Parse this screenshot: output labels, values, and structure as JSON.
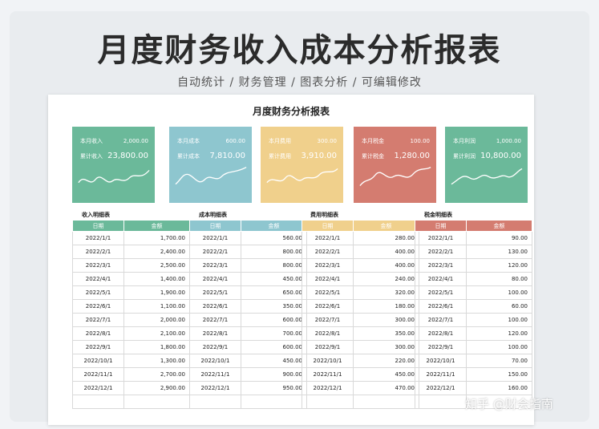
{
  "header": {
    "title": "月度财务收入成本分析报表",
    "subtitle": "自动统计 / 财务管理 / 图表分析 / 可编辑修改"
  },
  "sheet": {
    "title": "月度财务分析报表"
  },
  "cards": [
    {
      "label1": "本月收入",
      "value1": "2,000.00",
      "label2": "累计收入",
      "value2": "23,800.00",
      "color": "#6bb99a"
    },
    {
      "label1": "本月成本",
      "value1": "600.00",
      "label2": "累计成本",
      "value2": "7,810.00",
      "color": "#8ec6cf"
    },
    {
      "label1": "本月费用",
      "value1": "300.00",
      "label2": "累计费用",
      "value2": "3,910.00",
      "color": "#f0d08c"
    },
    {
      "label1": "本月税金",
      "value1": "100.00",
      "label2": "累计税金",
      "value2": "1,280.00",
      "color": "#d47c70"
    },
    {
      "label1": "本月利润",
      "value1": "1,000.00",
      "label2": "累计利润",
      "value2": "10,800.00",
      "color": "#6bb99a"
    }
  ],
  "tables": [
    {
      "title": "收入明细表",
      "col_date": "日期",
      "col_amount": "金额",
      "color": "#6bb99a",
      "rows": [
        [
          "2022/1/1",
          "1,700.00"
        ],
        [
          "2022/2/1",
          "2,400.00"
        ],
        [
          "2022/3/1",
          "2,500.00"
        ],
        [
          "2022/4/1",
          "1,400.00"
        ],
        [
          "2022/5/1",
          "1,900.00"
        ],
        [
          "2022/6/1",
          "1,100.00"
        ],
        [
          "2022/7/1",
          "2,000.00"
        ],
        [
          "2022/8/1",
          "2,100.00"
        ],
        [
          "2022/9/1",
          "1,800.00"
        ],
        [
          "2022/10/1",
          "1,300.00"
        ],
        [
          "2022/11/1",
          "2,700.00"
        ],
        [
          "2022/12/1",
          "2,900.00"
        ],
        [
          "",
          ""
        ]
      ]
    },
    {
      "title": "成本明细表",
      "col_date": "日期",
      "col_amount": "金额",
      "color": "#8ec6cf",
      "rows": [
        [
          "2022/1/1",
          "560.00"
        ],
        [
          "2022/2/1",
          "800.00"
        ],
        [
          "2022/3/1",
          "800.00"
        ],
        [
          "2022/4/1",
          "450.00"
        ],
        [
          "2022/5/1",
          "650.00"
        ],
        [
          "2022/6/1",
          "350.00"
        ],
        [
          "2022/7/1",
          "600.00"
        ],
        [
          "2022/8/1",
          "700.00"
        ],
        [
          "2022/9/1",
          "600.00"
        ],
        [
          "2022/10/1",
          "450.00"
        ],
        [
          "2022/11/1",
          "900.00"
        ],
        [
          "2022/12/1",
          "950.00"
        ],
        [
          "",
          ""
        ]
      ]
    },
    {
      "title": "费用明细表",
      "col_date": "日期",
      "col_amount": "金额",
      "color": "#f0d08c",
      "rows": [
        [
          "2022/1/1",
          "280.00"
        ],
        [
          "2022/2/1",
          "400.00"
        ],
        [
          "2022/3/1",
          "400.00"
        ],
        [
          "2022/4/1",
          "240.00"
        ],
        [
          "2022/5/1",
          "320.00"
        ],
        [
          "2022/6/1",
          "180.00"
        ],
        [
          "2022/7/1",
          "300.00"
        ],
        [
          "2022/8/1",
          "350.00"
        ],
        [
          "2022/9/1",
          "300.00"
        ],
        [
          "2022/10/1",
          "220.00"
        ],
        [
          "2022/11/1",
          "450.00"
        ],
        [
          "2022/12/1",
          "470.00"
        ],
        [
          "",
          ""
        ]
      ]
    },
    {
      "title": "税金明细表",
      "col_date": "日期",
      "col_amount": "金额",
      "color": "#d47c70",
      "rows": [
        [
          "2022/1/1",
          "90.00"
        ],
        [
          "2022/2/1",
          "130.00"
        ],
        [
          "2022/3/1",
          "120.00"
        ],
        [
          "2022/4/1",
          "80.00"
        ],
        [
          "2022/5/1",
          "100.00"
        ],
        [
          "2022/6/1",
          "60.00"
        ],
        [
          "2022/7/1",
          "100.00"
        ],
        [
          "2022/8/1",
          "120.00"
        ],
        [
          "2022/9/1",
          "100.00"
        ],
        [
          "2022/10/1",
          "70.00"
        ],
        [
          "2022/11/1",
          "150.00"
        ],
        [
          "2022/12/1",
          "160.00"
        ],
        [
          "",
          ""
        ]
      ]
    }
  ],
  "watermark": "知乎 @财会指南"
}
